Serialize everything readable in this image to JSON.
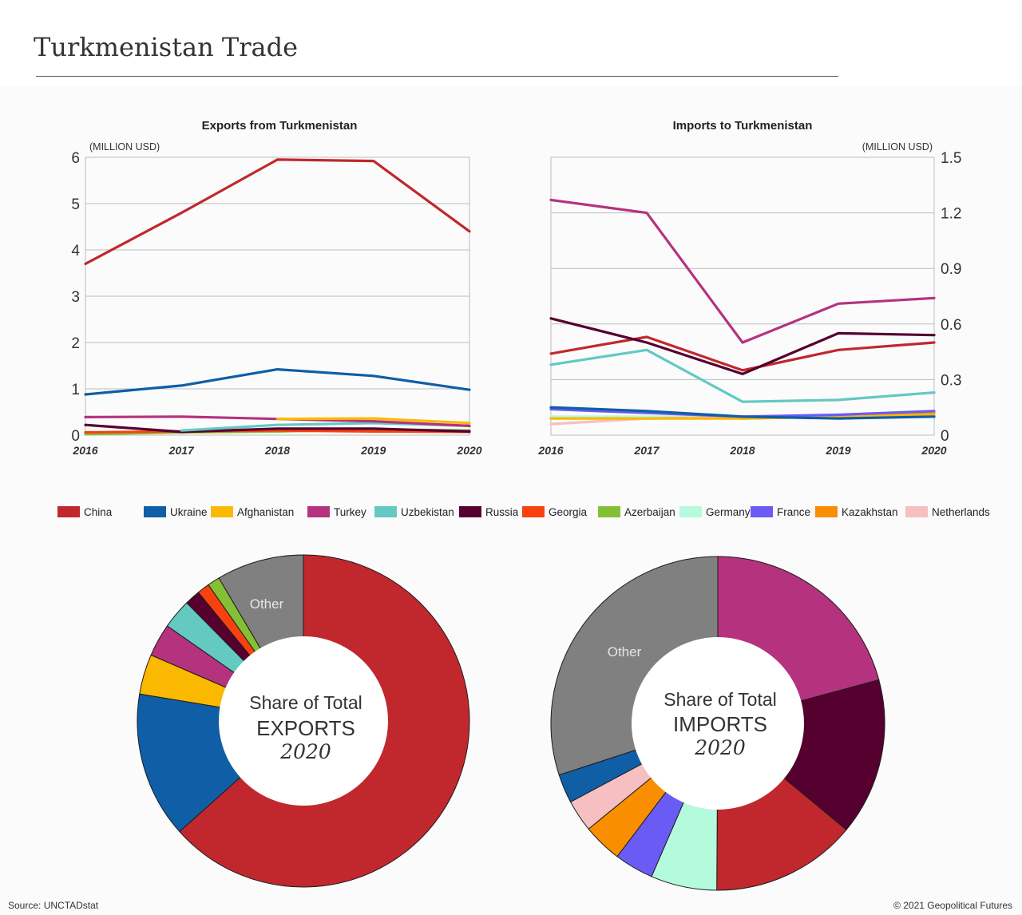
{
  "title": "Turkmenistan Trade",
  "source": "Source: UNCTADstat",
  "copyright": "© 2021 Geopolitical Futures",
  "chart_data": [
    {
      "type": "line",
      "title": "Exports from Turkmenistan",
      "unit": "(MILLION USD)",
      "x": [
        "2016",
        "2017",
        "2018",
        "2019",
        "2020"
      ],
      "ylim": [
        0,
        6
      ],
      "yticks": [
        "0",
        "1",
        "2",
        "3",
        "4",
        "5",
        "6"
      ],
      "grid": true,
      "series": [
        {
          "name": "China",
          "color": "#c0282d",
          "values": [
            3.7,
            4.8,
            5.95,
            5.92,
            4.4
          ]
        },
        {
          "name": "Ukraine",
          "color": "#0f5ea6",
          "values": [
            0.88,
            1.07,
            1.42,
            1.28,
            0.98
          ]
        },
        {
          "name": "Afghanistan",
          "color": "#fbb800",
          "values": [
            null,
            null,
            0.35,
            0.36,
            0.26
          ]
        },
        {
          "name": "Turkey",
          "color": "#b5327f",
          "values": [
            0.39,
            0.4,
            0.35,
            0.3,
            0.2
          ]
        },
        {
          "name": "Uzbekistan",
          "color": "#63c9c1",
          "values": [
            null,
            0.1,
            0.22,
            0.26,
            0.2
          ]
        },
        {
          "name": "Russia",
          "color": "#560030",
          "values": [
            0.22,
            0.07,
            0.14,
            0.14,
            0.08
          ]
        },
        {
          "name": "Georgia",
          "color": "#f7420f",
          "values": [
            0.06,
            0.08,
            0.1,
            0.08,
            0.07
          ]
        },
        {
          "name": "Azerbaijan",
          "color": "#84c036",
          "values": [
            0.02,
            0.06,
            0.08,
            0.12,
            0.1
          ]
        }
      ]
    },
    {
      "type": "line",
      "title": "Imports to Turkmenistan",
      "unit": "(MILLION USD)",
      "x": [
        "2016",
        "2017",
        "2018",
        "2019",
        "2020"
      ],
      "ylim": [
        0,
        1.5
      ],
      "yticks": [
        "0",
        "0.3",
        "0.6",
        "0.9",
        "1.2",
        "1.5"
      ],
      "axis_side": "right",
      "grid": true,
      "series": [
        {
          "name": "Turkey",
          "color": "#b5327f",
          "values": [
            1.27,
            1.2,
            0.5,
            0.71,
            0.74
          ]
        },
        {
          "name": "Russia",
          "color": "#560030",
          "values": [
            0.63,
            0.5,
            0.33,
            0.55,
            0.54
          ]
        },
        {
          "name": "China",
          "color": "#c0282d",
          "values": [
            0.44,
            0.53,
            0.35,
            0.46,
            0.5
          ]
        },
        {
          "name": "Uzbekistan",
          "color": "#63c9c1",
          "values": [
            0.38,
            0.46,
            0.18,
            0.19,
            0.23
          ]
        },
        {
          "name": "Ukraine",
          "color": "#0f5ea6",
          "values": [
            0.15,
            0.13,
            0.1,
            0.09,
            0.1
          ]
        },
        {
          "name": "France",
          "color": "#6b5bf5",
          "values": [
            0.14,
            0.12,
            0.1,
            0.11,
            0.13
          ]
        },
        {
          "name": "Afghanistan",
          "color": "#fbb800",
          "values": [
            0.09,
            0.09,
            0.09,
            0.1,
            0.11
          ]
        },
        {
          "name": "Kazakhstan",
          "color": "#f98f00",
          "values": [
            null,
            null,
            0.09,
            0.1,
            0.12
          ]
        },
        {
          "name": "Netherlands",
          "color": "#f6bfc1",
          "values": [
            0.06,
            0.09,
            0.1,
            0.1,
            0.11
          ]
        },
        {
          "name": "Germany",
          "color": "#b4fbdd",
          "values": [
            0.1,
            0.1,
            0.1,
            0.1,
            0.1
          ]
        }
      ]
    },
    {
      "type": "pie",
      "center_title": "Share of Total",
      "center_emphasis": "EXPORTS",
      "center_year": "2020",
      "slices": [
        {
          "name": "China",
          "color": "#c0282d",
          "value": 63.4
        },
        {
          "name": "Ukraine",
          "color": "#0f5ea6",
          "value": 14.2
        },
        {
          "name": "Afghanistan",
          "color": "#fbb800",
          "value": 3.9
        },
        {
          "name": "Turkey",
          "color": "#b5327f",
          "value": 3.2
        },
        {
          "name": "Uzbekistan",
          "color": "#63c9c1",
          "value": 2.9
        },
        {
          "name": "Russia",
          "color": "#560030",
          "value": 1.5
        },
        {
          "name": "Georgia",
          "color": "#f7420f",
          "value": 1.2
        },
        {
          "name": "Azerbaijan",
          "color": "#84c036",
          "value": 1.2
        },
        {
          "name": "Other",
          "color": "#808080",
          "value": 8.5,
          "label": "Other"
        }
      ]
    },
    {
      "type": "pie",
      "center_title": "Share of Total",
      "center_emphasis": "IMPORTS",
      "center_year": "2020",
      "slices": [
        {
          "name": "Turkey",
          "color": "#b5327f",
          "value": 20.8
        },
        {
          "name": "Russia",
          "color": "#560030",
          "value": 15.2
        },
        {
          "name": "China",
          "color": "#c0282d",
          "value": 14.1
        },
        {
          "name": "Germany",
          "color": "#b4fbdd",
          "value": 6.4
        },
        {
          "name": "France",
          "color": "#6b5bf5",
          "value": 3.8
        },
        {
          "name": "Kazakhstan",
          "color": "#f98f00",
          "value": 3.8
        },
        {
          "name": "Netherlands",
          "color": "#f6bfc1",
          "value": 3.1
        },
        {
          "name": "Ukraine",
          "color": "#0f5ea6",
          "value": 2.8
        },
        {
          "name": "Other",
          "color": "#808080",
          "value": 30.0,
          "label": "Other"
        }
      ]
    }
  ],
  "legend": [
    {
      "name": "China",
      "color": "#c0282d"
    },
    {
      "name": "Ukraine",
      "color": "#0f5ea6"
    },
    {
      "name": "Afghanistan",
      "color": "#fbb800"
    },
    {
      "name": "Turkey",
      "color": "#b5327f"
    },
    {
      "name": "Uzbekistan",
      "color": "#63c9c1"
    },
    {
      "name": "Russia",
      "color": "#560030"
    },
    {
      "name": "Georgia",
      "color": "#f7420f"
    },
    {
      "name": "Azerbaijan",
      "color": "#84c036"
    },
    {
      "name": "Germany",
      "color": "#b4fbdd"
    },
    {
      "name": "France",
      "color": "#6b5bf5"
    },
    {
      "name": "Kazakhstan",
      "color": "#f98f00"
    },
    {
      "name": "Netherlands",
      "color": "#f6bfc1"
    }
  ]
}
